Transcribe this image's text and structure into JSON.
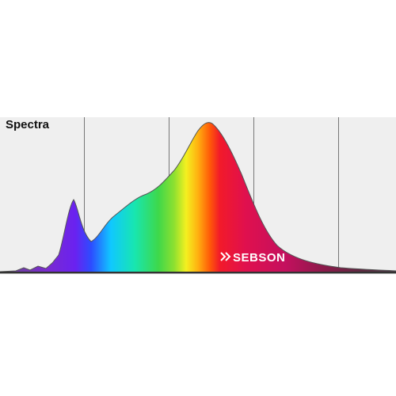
{
  "panel": {
    "title": "Spectra"
  },
  "logo": {
    "text": "SEBSON"
  }
}
